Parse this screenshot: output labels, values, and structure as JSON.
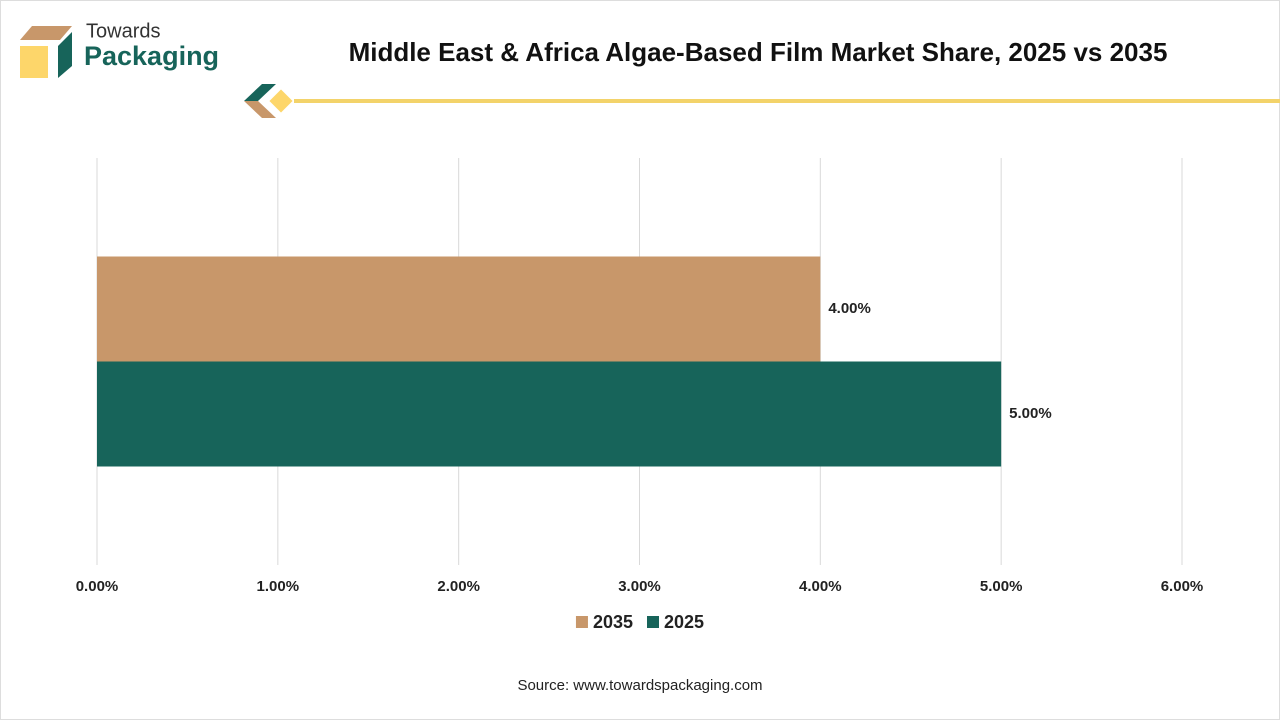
{
  "brand": {
    "line1": "Towards",
    "line2": "Packaging"
  },
  "source": "Source: www.towardspackaging.com",
  "chart_data": {
    "type": "bar",
    "orientation": "horizontal",
    "title": "Middle East & Africa Algae-Based Film Market Share, 2025 vs 2035",
    "categories": [
      null
    ],
    "series": [
      {
        "name": "2035",
        "color": "#c8976a",
        "values": [
          4
        ],
        "value_labels": [
          "4.00%"
        ]
      },
      {
        "name": "2025",
        "color": "#17645a",
        "values": [
          5
        ],
        "value_labels": [
          "5.00%"
        ]
      }
    ],
    "xlim": [
      0,
      6
    ],
    "xticks": [
      {
        "value": 0,
        "label": "0.00%"
      },
      {
        "value": 1,
        "label": "1.00%"
      },
      {
        "value": 2,
        "label": "2.00%"
      },
      {
        "value": 3,
        "label": "3.00%"
      },
      {
        "value": 4,
        "label": "4.00%"
      },
      {
        "value": 5,
        "label": "5.00%"
      },
      {
        "value": 6,
        "label": "6.00%"
      }
    ],
    "grid": true,
    "legend": "bottom"
  }
}
